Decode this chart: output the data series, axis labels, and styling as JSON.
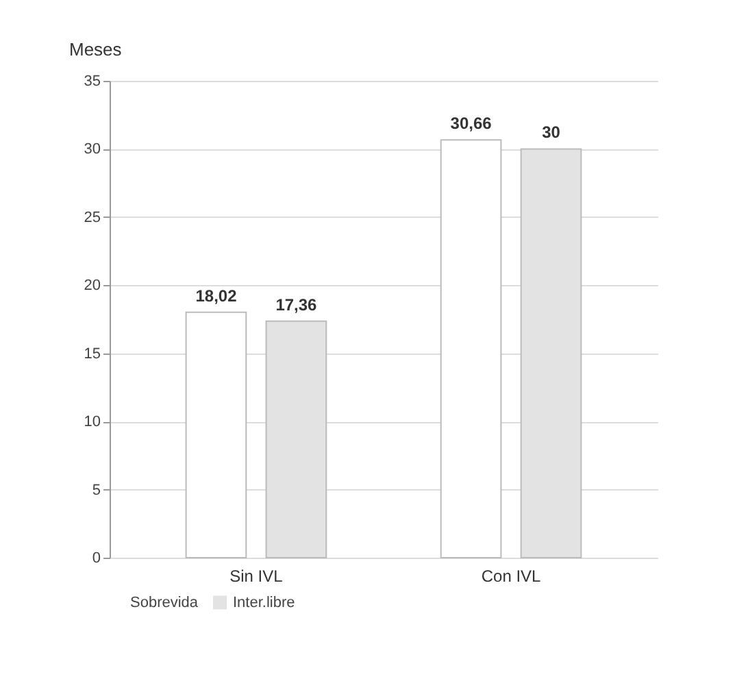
{
  "chart_data": {
    "type": "bar",
    "ylabel": "Meses",
    "categories": [
      "Sin IVL",
      "Con IVL"
    ],
    "series": [
      {
        "name": "Sobrevida",
        "color": "#ffffff",
        "values": [
          18.02,
          30.66
        ],
        "value_labels": [
          "18,02",
          "30,66"
        ]
      },
      {
        "name": "Inter.libre",
        "color": "#e3e3e3",
        "values": [
          17.36,
          30
        ],
        "value_labels": [
          "17,36",
          "30"
        ]
      }
    ],
    "ylim": [
      0,
      35
    ],
    "yticks": [
      0,
      5,
      10,
      15,
      20,
      25,
      30,
      35
    ],
    "grid": "y",
    "legend": "bottom"
  }
}
